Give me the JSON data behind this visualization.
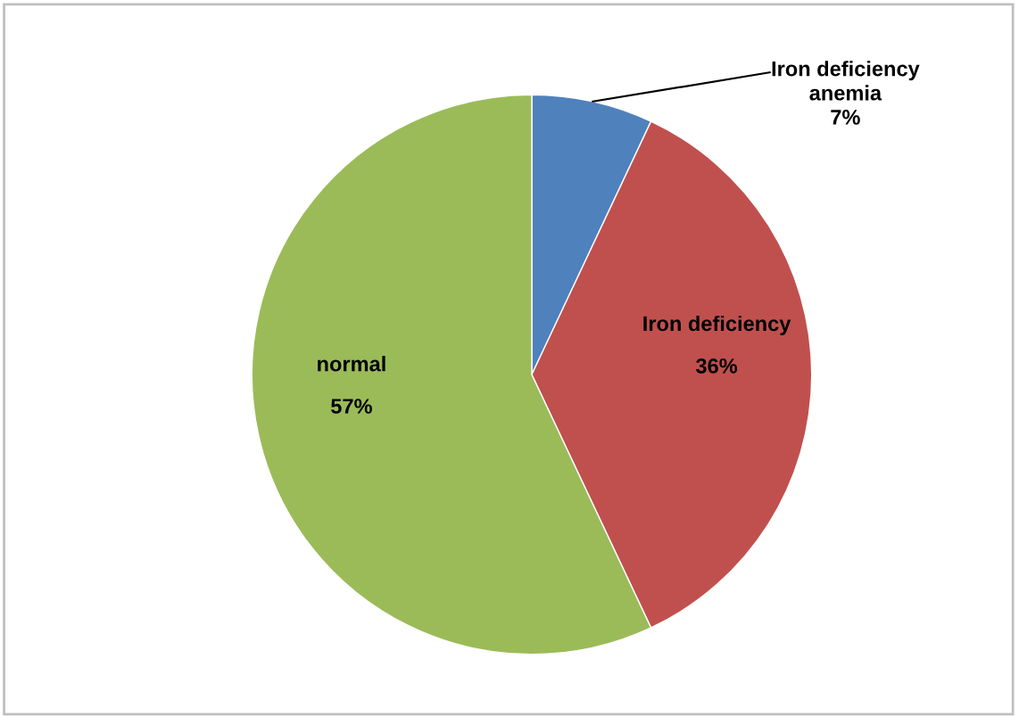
{
  "chart_data": {
    "type": "pie",
    "categories": [
      "Iron deficiency\nanemia",
      "Iron deficiency",
      "normal"
    ],
    "values": [
      7,
      36,
      57
    ],
    "value_labels": [
      "7%",
      "36%",
      "57%"
    ],
    "colors": [
      "#4f81bd",
      "#c0504d",
      "#9bbb59"
    ],
    "legend": false
  }
}
